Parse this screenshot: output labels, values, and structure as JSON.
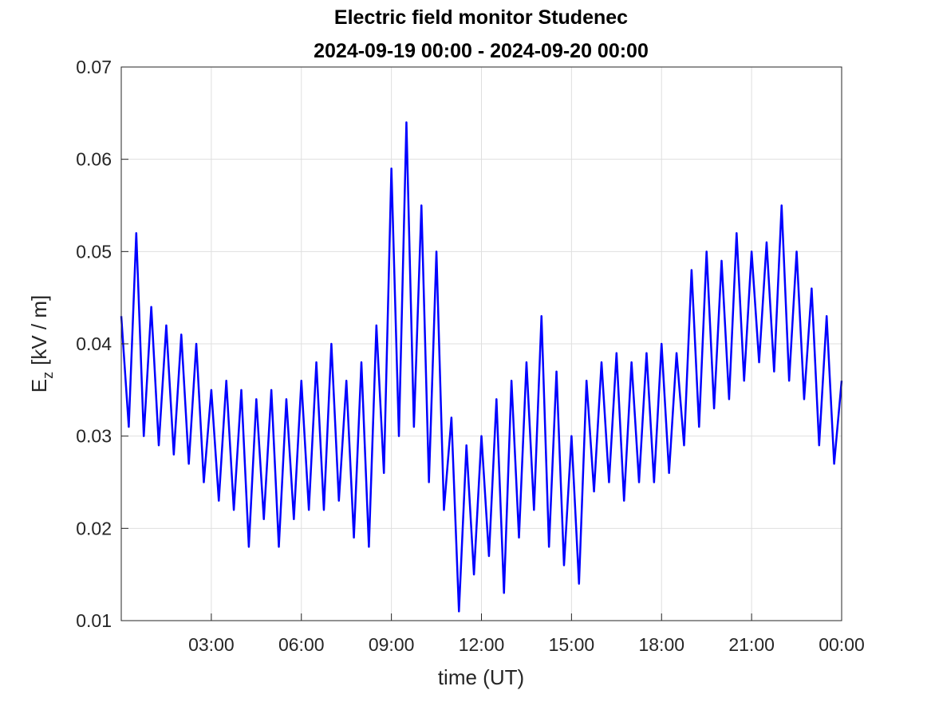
{
  "chart_data": {
    "type": "line",
    "title": "Electric field monitor Studenec",
    "subtitle": "2024-09-19 00:00 - 2024-09-20 00:00",
    "x_label": "time (UT)",
    "y_label": {
      "base": "E",
      "subscript": "z",
      "unit": "[kV / m]"
    },
    "color": "#0000ff",
    "grid": true,
    "xlim": [
      0,
      24
    ],
    "xticks": [
      {
        "value": 3,
        "label": "03:00"
      },
      {
        "value": 6,
        "label": "06:00"
      },
      {
        "value": 9,
        "label": "09:00"
      },
      {
        "value": 12,
        "label": "12:00"
      },
      {
        "value": 15,
        "label": "15:00"
      },
      {
        "value": 18,
        "label": "18:00"
      },
      {
        "value": 21,
        "label": "21:00"
      },
      {
        "value": 24,
        "label": "00:00"
      }
    ],
    "ylim": [
      0.01,
      0.07
    ],
    "yticks": [
      0.01,
      0.02,
      0.03,
      0.04,
      0.05,
      0.06,
      0.07
    ],
    "x": [
      0,
      0.25,
      0.5,
      0.75,
      1,
      1.25,
      1.5,
      1.75,
      2,
      2.25,
      2.5,
      2.75,
      3,
      3.25,
      3.5,
      3.75,
      4,
      4.25,
      4.5,
      4.75,
      5,
      5.25,
      5.5,
      5.75,
      6,
      6.25,
      6.5,
      6.75,
      7,
      7.25,
      7.5,
      7.75,
      8,
      8.25,
      8.5,
      8.75,
      9,
      9.25,
      9.5,
      9.75,
      10,
      10.25,
      10.5,
      10.75,
      11,
      11.25,
      11.5,
      11.75,
      12,
      12.25,
      12.5,
      12.75,
      13,
      13.25,
      13.5,
      13.75,
      14,
      14.25,
      14.5,
      14.75,
      15,
      15.25,
      15.5,
      15.75,
      16,
      16.25,
      16.5,
      16.75,
      17,
      17.25,
      17.5,
      17.75,
      18,
      18.25,
      18.5,
      18.75,
      19,
      19.25,
      19.5,
      19.75,
      20,
      20.25,
      20.5,
      20.75,
      21,
      21.25,
      21.5,
      21.75,
      22,
      22.25,
      22.5,
      22.75,
      23,
      23.25,
      23.5,
      23.75,
      24
    ],
    "values": [
      0.043,
      0.031,
      0.052,
      0.03,
      0.044,
      0.029,
      0.042,
      0.028,
      0.041,
      0.027,
      0.04,
      0.025,
      0.035,
      0.023,
      0.036,
      0.022,
      0.035,
      0.018,
      0.034,
      0.021,
      0.035,
      0.018,
      0.034,
      0.021,
      0.036,
      0.022,
      0.038,
      0.022,
      0.04,
      0.023,
      0.036,
      0.019,
      0.038,
      0.018,
      0.042,
      0.026,
      0.059,
      0.03,
      0.064,
      0.031,
      0.055,
      0.025,
      0.05,
      0.022,
      0.032,
      0.011,
      0.029,
      0.015,
      0.03,
      0.017,
      0.034,
      0.013,
      0.036,
      0.019,
      0.038,
      0.022,
      0.043,
      0.018,
      0.037,
      0.016,
      0.03,
      0.014,
      0.036,
      0.024,
      0.038,
      0.025,
      0.039,
      0.023,
      0.038,
      0.025,
      0.039,
      0.025,
      0.04,
      0.026,
      0.039,
      0.029,
      0.048,
      0.031,
      0.05,
      0.033,
      0.049,
      0.034,
      0.052,
      0.036,
      0.05,
      0.038,
      0.051,
      0.037,
      0.055,
      0.036,
      0.05,
      0.034,
      0.046,
      0.029,
      0.043,
      0.027,
      0.036
    ]
  }
}
